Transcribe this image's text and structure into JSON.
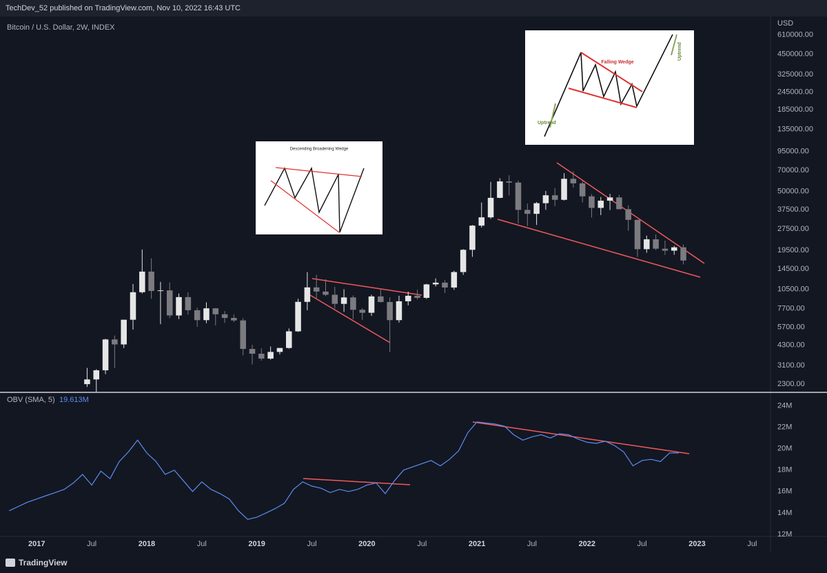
{
  "header": {
    "published": "TechDev_52 published on TradingView.com, Nov 10, 2022 16:43 UTC"
  },
  "footer": {
    "brand": "TradingView"
  },
  "chart_data": [
    {
      "type": "candlestick",
      "title": "Bitcoin / U.S. Dollar, 2W, INDEX",
      "y_unit": "USD",
      "log_scale": true,
      "grid": false,
      "up_color": "#e6e6e6",
      "down_color": "#7b7b80",
      "xlim": [
        "2016-09",
        "2023-09"
      ],
      "ylim": [
        2040,
        820000
      ],
      "yticks": [
        {
          "value": 2300,
          "label": "2300.00"
        },
        {
          "value": 3100,
          "label": "3100.00"
        },
        {
          "value": 4300,
          "label": "4300.00"
        },
        {
          "value": 5700,
          "label": "5700.00"
        },
        {
          "value": 7700,
          "label": "7700.00"
        },
        {
          "value": 10500,
          "label": "10500.00"
        },
        {
          "value": 14500,
          "label": "14500.00"
        },
        {
          "value": 19500,
          "label": "19500.00"
        },
        {
          "value": 27500,
          "label": "27500.00"
        },
        {
          "value": 37500,
          "label": "37500.00"
        },
        {
          "value": 50000,
          "label": "50000.00"
        },
        {
          "value": 70000,
          "label": "70000.00"
        },
        {
          "value": 95000,
          "label": "95000.00"
        },
        {
          "value": 135000,
          "label": "135000.00"
        },
        {
          "value": 185000,
          "label": "185000.00"
        },
        {
          "value": 245000,
          "label": "245000.00"
        },
        {
          "value": 325000,
          "label": "325000.00"
        },
        {
          "value": 450000,
          "label": "450000.00"
        },
        {
          "value": 610000,
          "label": "610000.00"
        }
      ],
      "x": [
        "2017-06",
        "2017-07",
        "2017-08",
        "2017-09",
        "2017-10",
        "2017-11",
        "2017-12",
        "2018-01",
        "2018-02",
        "2018-03",
        "2018-04",
        "2018-05",
        "2018-06",
        "2018-07",
        "2018-08",
        "2018-09",
        "2018-10",
        "2018-11",
        "2018-12",
        "2019-01",
        "2019-02",
        "2019-03",
        "2019-04",
        "2019-05",
        "2019-06",
        "2019-07",
        "2019-08",
        "2019-09",
        "2019-10",
        "2019-11",
        "2019-12",
        "2020-01",
        "2020-02",
        "2020-03",
        "2020-04",
        "2020-05",
        "2020-06",
        "2020-07",
        "2020-08",
        "2020-09",
        "2020-10",
        "2020-11",
        "2020-12",
        "2021-01",
        "2021-02",
        "2021-03",
        "2021-04",
        "2021-05",
        "2021-06",
        "2021-07",
        "2021-08",
        "2021-09",
        "2021-10",
        "2021-11",
        "2021-12",
        "2022-01",
        "2022-02",
        "2022-03",
        "2022-04",
        "2022-05",
        "2022-06",
        "2022-07",
        "2022-08",
        "2022-09",
        "2022-10",
        "2022-11"
      ],
      "open": [
        2300,
        2480,
        2870,
        4700,
        4340,
        6440,
        10000,
        13900,
        10200,
        10300,
        6900,
        9250,
        7500,
        6400,
        7730,
        7030,
        6630,
        6370,
        4040,
        3740,
        3460,
        3850,
        4100,
        5350,
        8570,
        10800,
        10100,
        9600,
        8300,
        9200,
        7550,
        7200,
        9350,
        8550,
        6400,
        8650,
        9450,
        9140,
        11330,
        11650,
        10780,
        13800,
        19700,
        28990,
        33100,
        45200,
        58800,
        57700,
        37300,
        35000,
        41500,
        47100,
        43800,
        61300,
        57000,
        46300,
        38500,
        43200,
        45500,
        37700,
        31800,
        19900,
        23300,
        20050,
        19430,
        20500
      ],
      "high": [
        2980,
        2920,
        4750,
        5000,
        6450,
        11400,
        19800,
        17200,
        11800,
        11700,
        9800,
        9990,
        7800,
        8500,
        7760,
        7400,
        7000,
        6600,
        4310,
        4080,
        4200,
        4100,
        5600,
        9000,
        13800,
        13200,
        12300,
        10900,
        10500,
        9500,
        7750,
        9600,
        10500,
        9200,
        9450,
        10100,
        10400,
        11450,
        12470,
        12100,
        14100,
        19900,
        29300,
        41950,
        58350,
        61800,
        64900,
        59600,
        41300,
        42300,
        50500,
        52900,
        67000,
        69000,
        59000,
        48000,
        45800,
        48200,
        47400,
        40000,
        31900,
        24700,
        25200,
        22800,
        21000,
        21450
      ],
      "low": [
        2200,
        1840,
        2700,
        2980,
        4100,
        5500,
        9800,
        9000,
        6000,
        6600,
        6500,
        7000,
        5750,
        6100,
        5880,
        6120,
        6200,
        3650,
        3150,
        3350,
        3400,
        3700,
        4050,
        5300,
        7500,
        9100,
        9400,
        7700,
        7300,
        6500,
        6430,
        6850,
        8500,
        3850,
        6150,
        8100,
        8900,
        8980,
        10950,
        9880,
        10400,
        13200,
        17600,
        28130,
        32300,
        44950,
        47000,
        30000,
        28800,
        29300,
        37300,
        39600,
        43300,
        53300,
        42000,
        33000,
        34300,
        37200,
        37600,
        26700,
        17600,
        18800,
        19600,
        18150,
        18200,
        15600
      ],
      "close": [
        2480,
        2870,
        4700,
        4340,
        6440,
        10000,
        13900,
        10200,
        10300,
        6900,
        9250,
        7500,
        6400,
        7730,
        7030,
        6630,
        6370,
        4040,
        3740,
        3460,
        3850,
        4100,
        5350,
        8570,
        10800,
        10100,
        9600,
        8300,
        9200,
        7550,
        7200,
        9350,
        8550,
        6400,
        8650,
        9450,
        9140,
        11330,
        11650,
        10780,
        13800,
        19700,
        28990,
        33100,
        45200,
        58800,
        57700,
        37300,
        35000,
        41500,
        47100,
        43800,
        61300,
        57000,
        46300,
        38500,
        43200,
        45500,
        37700,
        31800,
        19900,
        23300,
        20050,
        19430,
        20500,
        16600
      ],
      "annotations": [
        "Descending Broadening Wedge",
        "Falling Wedge",
        "Uptrend",
        "Uptrend"
      ]
    },
    {
      "type": "line",
      "title": "OBV (SMA, 5)",
      "status": "19.613M",
      "color": "#5b8def",
      "grid": false,
      "xlim": [
        "2016-09",
        "2023-09"
      ],
      "ylim": [
        11.8,
        25.2
      ],
      "yticks": [
        {
          "value": 12,
          "label": "12M"
        },
        {
          "value": 14,
          "label": "14M"
        },
        {
          "value": 16,
          "label": "16M"
        },
        {
          "value": 18,
          "label": "18M"
        },
        {
          "value": 20,
          "label": "20M"
        },
        {
          "value": 22,
          "label": "22M"
        },
        {
          "value": 24,
          "label": "24M"
        }
      ],
      "xticks": [
        {
          "value": "2017-01",
          "label": "2017"
        },
        {
          "value": "2017-07",
          "label": "Jul"
        },
        {
          "value": "2018-01",
          "label": "2018"
        },
        {
          "value": "2018-07",
          "label": "Jul"
        },
        {
          "value": "2019-01",
          "label": "2019"
        },
        {
          "value": "2019-07",
          "label": "Jul"
        },
        {
          "value": "2020-01",
          "label": "2020"
        },
        {
          "value": "2020-07",
          "label": "Jul"
        },
        {
          "value": "2021-01",
          "label": "2021"
        },
        {
          "value": "2021-07",
          "label": "Jul"
        },
        {
          "value": "2022-01",
          "label": "2022"
        },
        {
          "value": "2022-07",
          "label": "Jul"
        },
        {
          "value": "2023-01",
          "label": "2023"
        },
        {
          "value": "2023-07",
          "label": "Jul"
        }
      ],
      "x": [
        "2016-10",
        "2016-11",
        "2016-12",
        "2017-01",
        "2017-02",
        "2017-03",
        "2017-04",
        "2017-05",
        "2017-06",
        "2017-07",
        "2017-08",
        "2017-09",
        "2017-10",
        "2017-11",
        "2017-12",
        "2018-01",
        "2018-02",
        "2018-03",
        "2018-04",
        "2018-05",
        "2018-06",
        "2018-07",
        "2018-08",
        "2018-09",
        "2018-10",
        "2018-11",
        "2018-12",
        "2019-01",
        "2019-02",
        "2019-03",
        "2019-04",
        "2019-05",
        "2019-06",
        "2019-07",
        "2019-08",
        "2019-09",
        "2019-10",
        "2019-11",
        "2019-12",
        "2020-01",
        "2020-02",
        "2020-03",
        "2020-04",
        "2020-05",
        "2020-06",
        "2020-07",
        "2020-08",
        "2020-09",
        "2020-10",
        "2020-11",
        "2020-12",
        "2021-01",
        "2021-02",
        "2021-03",
        "2021-04",
        "2021-05",
        "2021-06",
        "2021-07",
        "2021-08",
        "2021-09",
        "2021-10",
        "2021-11",
        "2021-12",
        "2022-01",
        "2022-02",
        "2022-03",
        "2022-04",
        "2022-05",
        "2022-06",
        "2022-07",
        "2022-08",
        "2022-09",
        "2022-10",
        "2022-11"
      ],
      "values": [
        14.2,
        14.6,
        15.0,
        15.3,
        15.6,
        15.9,
        16.2,
        16.8,
        17.6,
        16.6,
        17.9,
        17.2,
        18.8,
        19.7,
        20.8,
        19.6,
        18.8,
        17.6,
        18.0,
        17.0,
        16.0,
        16.9,
        16.2,
        15.8,
        15.3,
        14.2,
        13.4,
        13.6,
        14.0,
        14.4,
        14.9,
        16.2,
        16.9,
        16.5,
        16.3,
        15.9,
        16.2,
        16.0,
        16.2,
        16.6,
        16.8,
        15.8,
        17.0,
        18.0,
        18.3,
        18.6,
        18.9,
        18.4,
        19.0,
        19.8,
        21.5,
        22.5,
        22.4,
        22.3,
        22.1,
        21.3,
        20.8,
        21.1,
        21.3,
        21.0,
        21.4,
        21.3,
        20.9,
        20.6,
        20.5,
        20.7,
        20.3,
        19.7,
        18.4,
        18.9,
        19.0,
        18.8,
        19.6,
        19.6
      ]
    }
  ]
}
